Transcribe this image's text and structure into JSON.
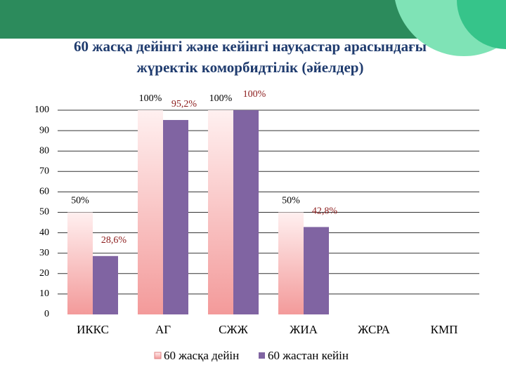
{
  "chart_data": {
    "type": "bar",
    "title": "60 жасқа дейінгі және кейінгі науқастар арасындағы",
    "subtitle": "жүректік коморбидтілік (әйелдер)",
    "categories": [
      "ИККС",
      "АГ",
      "СЖЖ",
      "ЖИА",
      "ЖСРА",
      "КМП"
    ],
    "series": [
      {
        "name": "60 жасқа дейін",
        "color": "#f39a9a",
        "values": [
          50,
          100,
          100,
          50,
          null,
          null
        ],
        "value_labels": [
          "50%",
          "100%",
          "100%",
          "50%",
          null,
          null
        ],
        "label_color": "#000000"
      },
      {
        "name": "60 жастан кейін",
        "color": "#8064a2",
        "values": [
          28.6,
          95.2,
          100,
          42.8,
          null,
          null
        ],
        "value_labels": [
          "28,6%",
          "95,2%",
          "100%",
          "42,8%",
          null,
          null
        ],
        "label_color": "#8b1a1a"
      }
    ],
    "ylim": [
      0,
      100
    ],
    "yticks": [
      0,
      10,
      20,
      30,
      40,
      50,
      60,
      70,
      80,
      90,
      100
    ],
    "grid": true,
    "legend": "bottom"
  }
}
